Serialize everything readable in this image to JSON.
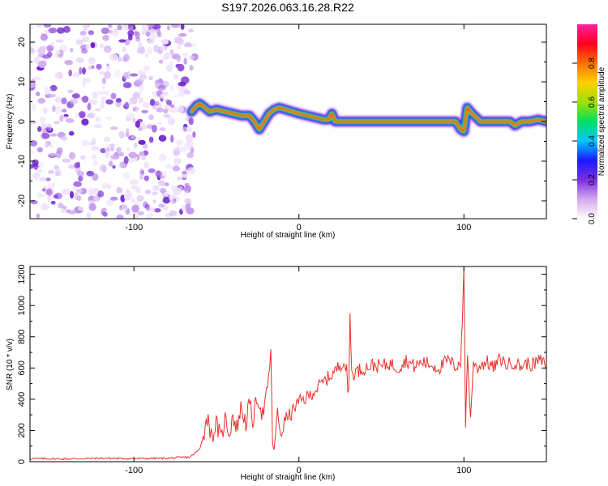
{
  "figure_title": "S197.2026.063.16.28.R22",
  "chart_data": [
    {
      "type": "heatmap",
      "title": "S197.2026.063.16.28.R22",
      "xlabel": "Height of straight line (km)",
      "ylabel": "Frequency (Hz)",
      "xlim": [
        -163,
        150
      ],
      "ylim": [
        -24.5,
        24.5
      ],
      "xticks": [
        -100,
        0,
        100
      ],
      "xtick_labels": [
        "-100",
        "0",
        "100"
      ],
      "yticks": [
        -20,
        -10,
        0,
        10,
        20
      ],
      "ytick_labels": [
        "-20",
        "-10",
        "0",
        "10",
        "20"
      ],
      "noise_region_x": [
        -163,
        -65
      ],
      "signal_ridge": {
        "x": [
          -65,
          -62,
          -60,
          -57,
          -54,
          -50,
          -45,
          -40,
          -35,
          -30,
          -27,
          -24,
          -21,
          -18,
          -15,
          -12,
          -8,
          -4,
          0,
          5,
          10,
          15,
          18,
          20,
          22,
          30,
          40,
          60,
          80,
          95,
          98,
          100,
          102,
          105,
          110,
          120,
          128,
          131,
          135,
          140,
          145,
          150
        ],
        "y": [
          2.5,
          4,
          4.5,
          3.5,
          2.5,
          3,
          2.5,
          2,
          1.5,
          1.5,
          0,
          -2,
          0,
          2,
          3,
          3.5,
          3,
          2.5,
          2,
          1.5,
          1,
          0.5,
          0.5,
          2,
          0,
          0,
          0,
          0,
          0,
          0,
          -2,
          -2.5,
          3.5,
          2,
          0,
          0,
          0,
          -1,
          0,
          0,
          0.5,
          0
        ]
      },
      "colorbar": {
        "label": "Normalized spectral amplitude",
        "range": [
          0,
          1
        ],
        "ticks": [
          0.0,
          0.2,
          0.4,
          0.6,
          0.8
        ],
        "tick_labels": [
          "0.0",
          "0.2",
          "0.4",
          "0.6",
          "0.8"
        ],
        "colors": [
          "#ffffff",
          "#d3a8f0",
          "#7a2ee0",
          "#1a1aff",
          "#00c8ff",
          "#00e060",
          "#a0e000",
          "#ffd000",
          "#ff7000",
          "#ff0020",
          "#ff20a0"
        ]
      }
    },
    {
      "type": "line",
      "xlabel": "Height of straight line (km)",
      "ylabel": "SNR (10 * v/v)",
      "xlim": [
        -163,
        150
      ],
      "ylim": [
        0,
        1250
      ],
      "xticks": [
        -100,
        0,
        100
      ],
      "xtick_labels": [
        "-100",
        "0",
        "100"
      ],
      "yticks": [
        0,
        200,
        400,
        600,
        800,
        1000,
        1200
      ],
      "ytick_labels": [
        "0",
        "200",
        "400",
        "600",
        "800",
        "1000",
        "1200"
      ],
      "line_color": "#e8302a",
      "series": [
        {
          "name": "SNR",
          "x": [
            -163,
            -140,
            -120,
            -100,
            -80,
            -66,
            -60,
            -55,
            -53,
            -50,
            -47,
            -45,
            -42,
            -40,
            -38,
            -35,
            -32,
            -30,
            -28,
            -25,
            -22,
            -19,
            -17,
            -16,
            -15,
            -13,
            -11,
            -8,
            -5,
            -2,
            0,
            3,
            6,
            10,
            14,
            18,
            22,
            25,
            27,
            29,
            30,
            31,
            32,
            35,
            40,
            45,
            50,
            55,
            60,
            65,
            70,
            75,
            80,
            85,
            90,
            95,
            98,
            99,
            100,
            101,
            102,
            104,
            106,
            108,
            110,
            114,
            118,
            122,
            126,
            130,
            134,
            138,
            142,
            146,
            150
          ],
          "y": [
            20,
            18,
            22,
            20,
            22,
            30,
            80,
            300,
            150,
            250,
            130,
            280,
            180,
            310,
            200,
            350,
            240,
            380,
            260,
            420,
            300,
            450,
            720,
            120,
            80,
            300,
            170,
            280,
            300,
            360,
            380,
            400,
            420,
            460,
            500,
            540,
            580,
            620,
            650,
            580,
            330,
            950,
            560,
            580,
            600,
            620,
            610,
            630,
            600,
            650,
            610,
            640,
            620,
            600,
            650,
            610,
            640,
            870,
            1245,
            220,
            700,
            290,
            650,
            600,
            620,
            640,
            600,
            660,
            620,
            640,
            610,
            630,
            620,
            650,
            620
          ]
        }
      ]
    }
  ]
}
